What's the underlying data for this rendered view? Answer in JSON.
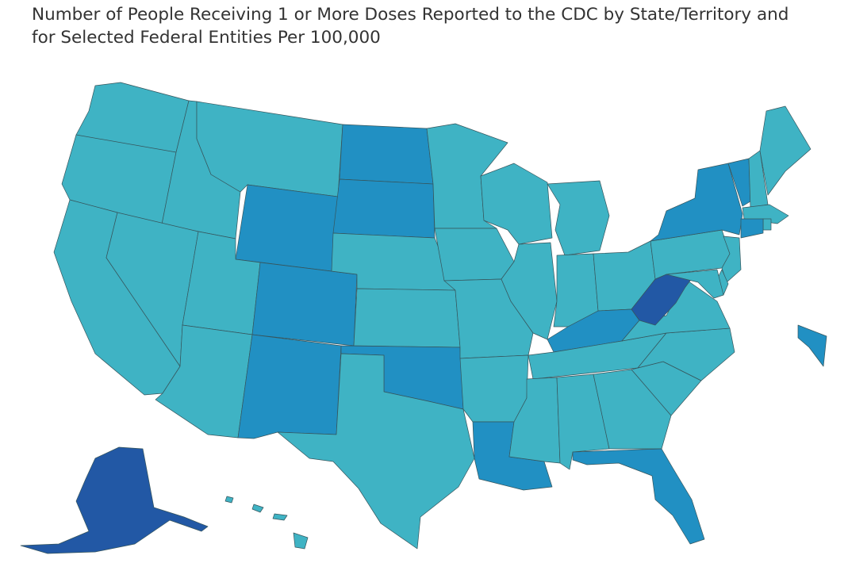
{
  "title": {
    "line1": "Number of People Receiving 1 or More Doses Reported to the CDC by State/Territory and",
    "line2": "for Selected Federal Entities Per 100,000"
  },
  "color_scale": {
    "low": "#3fb3c4",
    "mid": "#2190c3",
    "high": "#2258a5"
  },
  "states": [
    {
      "id": "WA",
      "tier": "low"
    },
    {
      "id": "OR",
      "tier": "low"
    },
    {
      "id": "CA",
      "tier": "low"
    },
    {
      "id": "ID",
      "tier": "low"
    },
    {
      "id": "NV",
      "tier": "low"
    },
    {
      "id": "MT",
      "tier": "low"
    },
    {
      "id": "WY",
      "tier": "mid"
    },
    {
      "id": "UT",
      "tier": "low"
    },
    {
      "id": "AZ",
      "tier": "low"
    },
    {
      "id": "CO",
      "tier": "mid"
    },
    {
      "id": "NM",
      "tier": "mid"
    },
    {
      "id": "ND",
      "tier": "mid"
    },
    {
      "id": "SD",
      "tier": "mid"
    },
    {
      "id": "NE",
      "tier": "low"
    },
    {
      "id": "KS",
      "tier": "low"
    },
    {
      "id": "OK",
      "tier": "mid"
    },
    {
      "id": "TX",
      "tier": "low"
    },
    {
      "id": "MN",
      "tier": "low"
    },
    {
      "id": "IA",
      "tier": "low"
    },
    {
      "id": "MO",
      "tier": "low"
    },
    {
      "id": "AR",
      "tier": "low"
    },
    {
      "id": "LA",
      "tier": "mid"
    },
    {
      "id": "WI",
      "tier": "low"
    },
    {
      "id": "IL",
      "tier": "low"
    },
    {
      "id": "MI",
      "tier": "low"
    },
    {
      "id": "IN",
      "tier": "low"
    },
    {
      "id": "OH",
      "tier": "low"
    },
    {
      "id": "KY",
      "tier": "mid"
    },
    {
      "id": "TN",
      "tier": "low"
    },
    {
      "id": "MS",
      "tier": "low"
    },
    {
      "id": "AL",
      "tier": "low"
    },
    {
      "id": "GA",
      "tier": "low"
    },
    {
      "id": "FL",
      "tier": "mid"
    },
    {
      "id": "SC",
      "tier": "low"
    },
    {
      "id": "NC",
      "tier": "low"
    },
    {
      "id": "VA",
      "tier": "low"
    },
    {
      "id": "WV",
      "tier": "high"
    },
    {
      "id": "PA",
      "tier": "low"
    },
    {
      "id": "NY",
      "tier": "mid"
    },
    {
      "id": "VT",
      "tier": "mid"
    },
    {
      "id": "NH",
      "tier": "low"
    },
    {
      "id": "ME",
      "tier": "low"
    },
    {
      "id": "MA",
      "tier": "low"
    },
    {
      "id": "RI",
      "tier": "low"
    },
    {
      "id": "CT",
      "tier": "mid"
    },
    {
      "id": "NJ",
      "tier": "low"
    },
    {
      "id": "DE",
      "tier": "low"
    },
    {
      "id": "MD",
      "tier": "low"
    },
    {
      "id": "AK",
      "tier": "high"
    },
    {
      "id": "HI",
      "tier": "low"
    },
    {
      "id": "PR",
      "tier": "mid"
    }
  ]
}
